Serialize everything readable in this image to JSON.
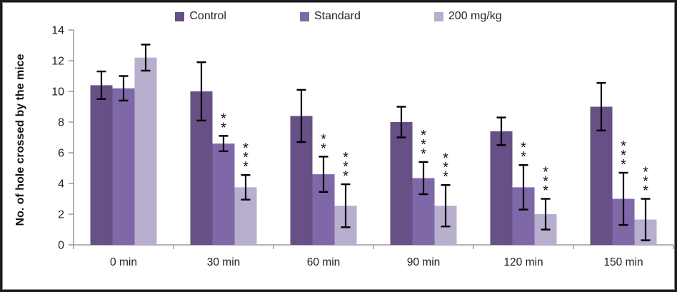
{
  "frame": {
    "border_color": "#1c1c1c",
    "background": "#ffffff"
  },
  "chart_data": {
    "type": "bar",
    "title": "",
    "xlabel": "",
    "ylabel": "No. of hole crossed by the mice",
    "ylim": [
      0,
      14
    ],
    "yticks": [
      0,
      2,
      4,
      6,
      8,
      10,
      12,
      14
    ],
    "grid": false,
    "legend_position": "top",
    "axis_color": "#8a8a8a",
    "error_bar_color": "#000000",
    "categories": [
      "0 min",
      "30 min",
      "60 min",
      "90 min",
      "120 min",
      "150 min"
    ],
    "series": [
      {
        "name": "Control",
        "color": "#665086",
        "values": [
          10.4,
          10.0,
          8.4,
          8.0,
          7.4,
          9.0
        ],
        "errors": [
          0.9,
          1.9,
          1.7,
          1.0,
          0.9,
          1.55
        ],
        "significance": [
          "",
          "",
          "",
          "",
          "",
          ""
        ]
      },
      {
        "name": "Standard",
        "color": "#7e68a8",
        "values": [
          10.2,
          6.6,
          4.6,
          4.35,
          3.75,
          3.0
        ],
        "errors": [
          0.8,
          0.5,
          1.15,
          1.05,
          1.45,
          1.7
        ],
        "significance": [
          "",
          "**",
          "**",
          "***",
          "**",
          "***"
        ]
      },
      {
        "name": "200 mg/kg",
        "color": "#b8aecd",
        "values": [
          12.2,
          3.75,
          2.55,
          2.55,
          2.0,
          1.65
        ],
        "errors": [
          0.85,
          0.8,
          1.4,
          1.35,
          1.0,
          1.35
        ],
        "significance": [
          "",
          "***",
          "***",
          "***",
          "***",
          "***"
        ]
      }
    ]
  }
}
